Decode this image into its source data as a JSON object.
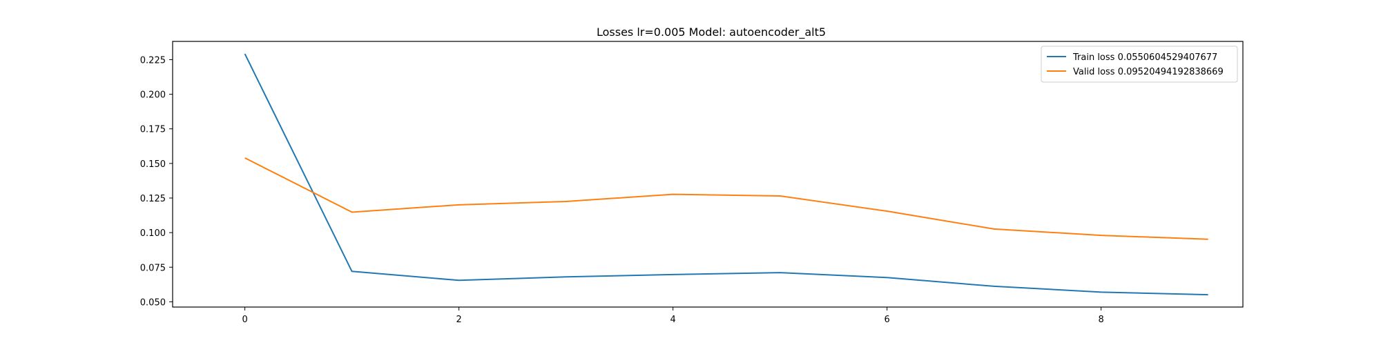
{
  "chart_data": {
    "type": "line",
    "title": "Losses lr=0.005 Model: autoencoder_alt5",
    "xlabel": "",
    "ylabel": "",
    "x": [
      0,
      1,
      2,
      3,
      4,
      5,
      6,
      7,
      8,
      9
    ],
    "xlim": [
      -0.675,
      9.325
    ],
    "ylim": [
      0.0462,
      0.2382
    ],
    "xticks": [
      0,
      2,
      4,
      6,
      8
    ],
    "xtick_labels": [
      "0",
      "2",
      "4",
      "6",
      "8"
    ],
    "yticks": [
      0.05,
      0.075,
      0.1,
      0.125,
      0.15,
      0.175,
      0.2,
      0.225
    ],
    "ytick_labels": [
      "0.050",
      "0.075",
      "0.100",
      "0.125",
      "0.150",
      "0.175",
      "0.200",
      "0.225"
    ],
    "grid": false,
    "legend_position": "top-right",
    "series": [
      {
        "name": "Train loss 0.0550604529407677",
        "color": "#1f77b4",
        "values": [
          0.2292,
          0.072,
          0.0655,
          0.068,
          0.0697,
          0.0711,
          0.0675,
          0.0612,
          0.057,
          0.0551
        ]
      },
      {
        "name": "Valid loss 0.09520494192838669",
        "color": "#ff7f0e",
        "values": [
          0.154,
          0.1148,
          0.1201,
          0.1225,
          0.1277,
          0.1265,
          0.1155,
          0.1026,
          0.098,
          0.0952
        ]
      }
    ]
  }
}
